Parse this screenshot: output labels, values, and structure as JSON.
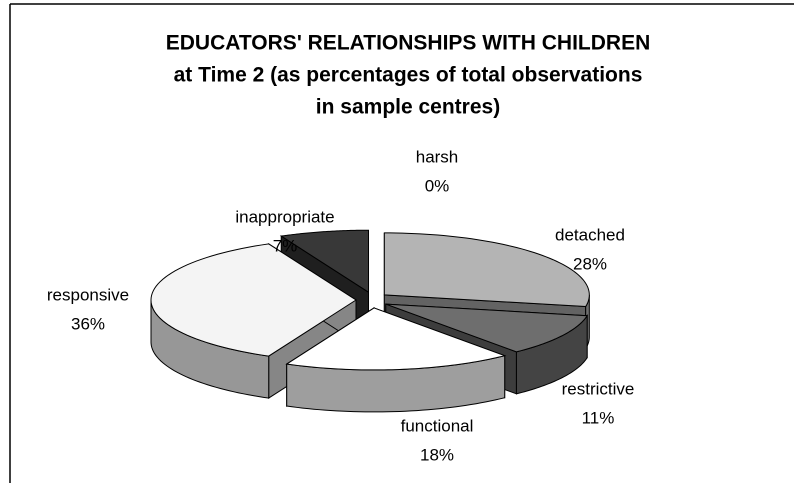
{
  "chart_data": {
    "type": "pie",
    "title": [
      "EDUCATORS' RELATIONSHIPS WITH CHILDREN",
      "at Time 2 (as percentages of total observations",
      "in sample centres)"
    ],
    "categories": [
      "harsh",
      "detached",
      "restrictive",
      "functional",
      "responsive",
      "inappropriate"
    ],
    "values": [
      0,
      28,
      11,
      18,
      36,
      7
    ],
    "value_labels": [
      "0%",
      "28%",
      "11%",
      "18%",
      "36%",
      "7%"
    ],
    "colors": [
      "#404040",
      "#b4b4b4",
      "#6e6e6e",
      "#ffffff",
      "#f4f4f4",
      "#383838"
    ]
  }
}
